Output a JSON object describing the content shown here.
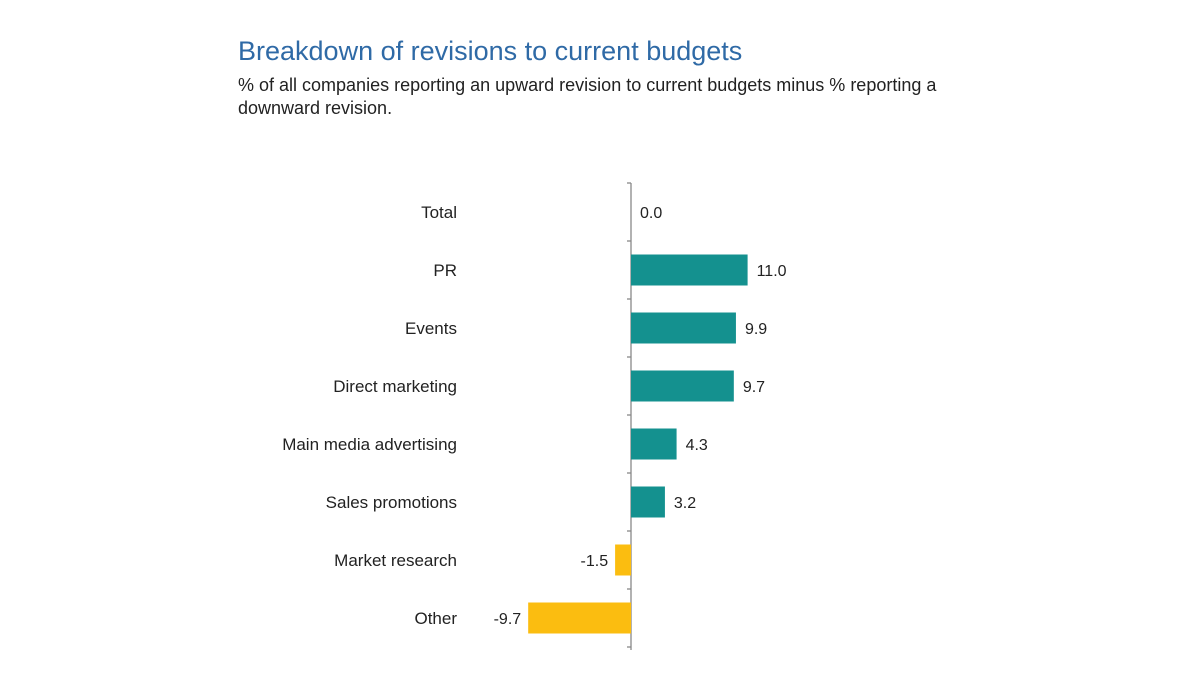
{
  "chart_data": {
    "type": "bar",
    "orientation": "horizontal",
    "title": "Breakdown of revisions to current budgets",
    "subtitle": "% of all companies reporting an upward revision to current budgets minus % reporting a downward revision.",
    "xlabel": "",
    "ylabel": "",
    "categories": [
      "Total",
      "PR",
      "Events",
      "Direct marketing",
      "Main media advertising",
      "Sales promotions",
      "Market research",
      "Other"
    ],
    "values": [
      0.0,
      11.0,
      9.9,
      9.7,
      4.3,
      3.2,
      -1.5,
      -9.7
    ],
    "value_labels": [
      "0.0",
      "11.0",
      "9.9",
      "9.7",
      "4.3",
      "3.2",
      "-1.5",
      "-9.7"
    ],
    "grid": false,
    "colors": {
      "positive": "#14918f",
      "negative": "#fbbd10",
      "title": "#2f6aa6",
      "axis": "#888888"
    }
  }
}
